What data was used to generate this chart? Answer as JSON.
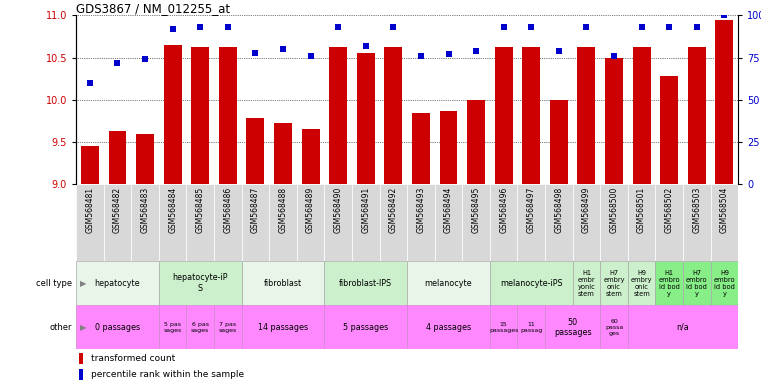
{
  "title": "GDS3867 / NM_012255_at",
  "gsm_labels": [
    "GSM568481",
    "GSM568482",
    "GSM568483",
    "GSM568484",
    "GSM568485",
    "GSM568486",
    "GSM568487",
    "GSM568488",
    "GSM568489",
    "GSM568490",
    "GSM568491",
    "GSM568492",
    "GSM568493",
    "GSM568494",
    "GSM568495",
    "GSM568496",
    "GSM568497",
    "GSM568498",
    "GSM568499",
    "GSM568500",
    "GSM568501",
    "GSM568502",
    "GSM568503",
    "GSM568504"
  ],
  "bar_values": [
    9.45,
    9.63,
    9.6,
    10.65,
    10.62,
    10.62,
    9.78,
    9.72,
    9.65,
    10.62,
    10.55,
    10.62,
    9.85,
    9.87,
    10.0,
    10.62,
    10.62,
    10.0,
    10.62,
    10.5,
    10.62,
    10.28,
    10.62,
    10.95
  ],
  "dot_values": [
    60,
    72,
    74,
    92,
    93,
    93,
    78,
    80,
    76,
    93,
    82,
    93,
    76,
    77,
    79,
    93,
    93,
    79,
    93,
    76,
    93,
    93,
    93,
    100
  ],
  "ylim_left": [
    9.0,
    11.0
  ],
  "ylim_right": [
    0,
    100
  ],
  "yticks_left": [
    9.0,
    9.5,
    10.0,
    10.5,
    11.0
  ],
  "yticks_right": [
    0,
    25,
    50,
    75,
    100
  ],
  "bar_color": "#cc0000",
  "dot_color": "#0000cc",
  "cell_type_bg": "#e8f5e8",
  "cell_type_alt_bg": "#ccf0cc",
  "embroid_bg": "#88ee88",
  "other_bg": "#ff88ff",
  "gsm_bg": "#e0e0e0",
  "cell_types": [
    {
      "label": "hepatocyte",
      "start": 0,
      "end": 3,
      "color": "#e8f5e8"
    },
    {
      "label": "hepatocyte-iP\nS",
      "start": 3,
      "end": 6,
      "color": "#ccf0cc"
    },
    {
      "label": "fibroblast",
      "start": 6,
      "end": 9,
      "color": "#e8f5e8"
    },
    {
      "label": "fibroblast-IPS",
      "start": 9,
      "end": 12,
      "color": "#ccf0cc"
    },
    {
      "label": "melanocyte",
      "start": 12,
      "end": 15,
      "color": "#e8f5e8"
    },
    {
      "label": "melanocyte-iPS",
      "start": 15,
      "end": 18,
      "color": "#ccf0cc"
    },
    {
      "label": "H1\nembr\nyonic\nstem",
      "start": 18,
      "end": 19,
      "color": "#ccf0cc"
    },
    {
      "label": "H7\nembry\nonic\nstem",
      "start": 19,
      "end": 20,
      "color": "#ccf0cc"
    },
    {
      "label": "H9\nembry\nonic\nstem",
      "start": 20,
      "end": 21,
      "color": "#ccf0cc"
    },
    {
      "label": "H1\nembro\nid bod\ny",
      "start": 21,
      "end": 22,
      "color": "#88ee88"
    },
    {
      "label": "H7\nembro\nid bod\ny",
      "start": 22,
      "end": 23,
      "color": "#88ee88"
    },
    {
      "label": "H9\nembro\nid bod\ny",
      "start": 23,
      "end": 24,
      "color": "#88ee88"
    }
  ],
  "other_labels": [
    {
      "label": "0 passages",
      "start": 0,
      "end": 3,
      "color": "#ff88ff"
    },
    {
      "label": "5 pas\nsages",
      "start": 3,
      "end": 4,
      "color": "#ff88ff"
    },
    {
      "label": "6 pas\nsages",
      "start": 4,
      "end": 5,
      "color": "#ff88ff"
    },
    {
      "label": "7 pas\nsages",
      "start": 5,
      "end": 6,
      "color": "#ff88ff"
    },
    {
      "label": "14 passages",
      "start": 6,
      "end": 9,
      "color": "#ff88ff"
    },
    {
      "label": "5 passages",
      "start": 9,
      "end": 12,
      "color": "#ff88ff"
    },
    {
      "label": "4 passages",
      "start": 12,
      "end": 15,
      "color": "#ff88ff"
    },
    {
      "label": "15\npassages",
      "start": 15,
      "end": 16,
      "color": "#ff88ff"
    },
    {
      "label": "11\npassag",
      "start": 16,
      "end": 17,
      "color": "#ff88ff"
    },
    {
      "label": "50\npassages",
      "start": 17,
      "end": 19,
      "color": "#ff88ff"
    },
    {
      "label": "60\npassa\nges",
      "start": 19,
      "end": 20,
      "color": "#ff88ff"
    },
    {
      "label": "n/a",
      "start": 20,
      "end": 24,
      "color": "#ff88ff"
    }
  ],
  "legend_items": [
    {
      "label": "transformed count",
      "color": "#cc0000"
    },
    {
      "label": "percentile rank within the sample",
      "color": "#0000cc"
    }
  ]
}
